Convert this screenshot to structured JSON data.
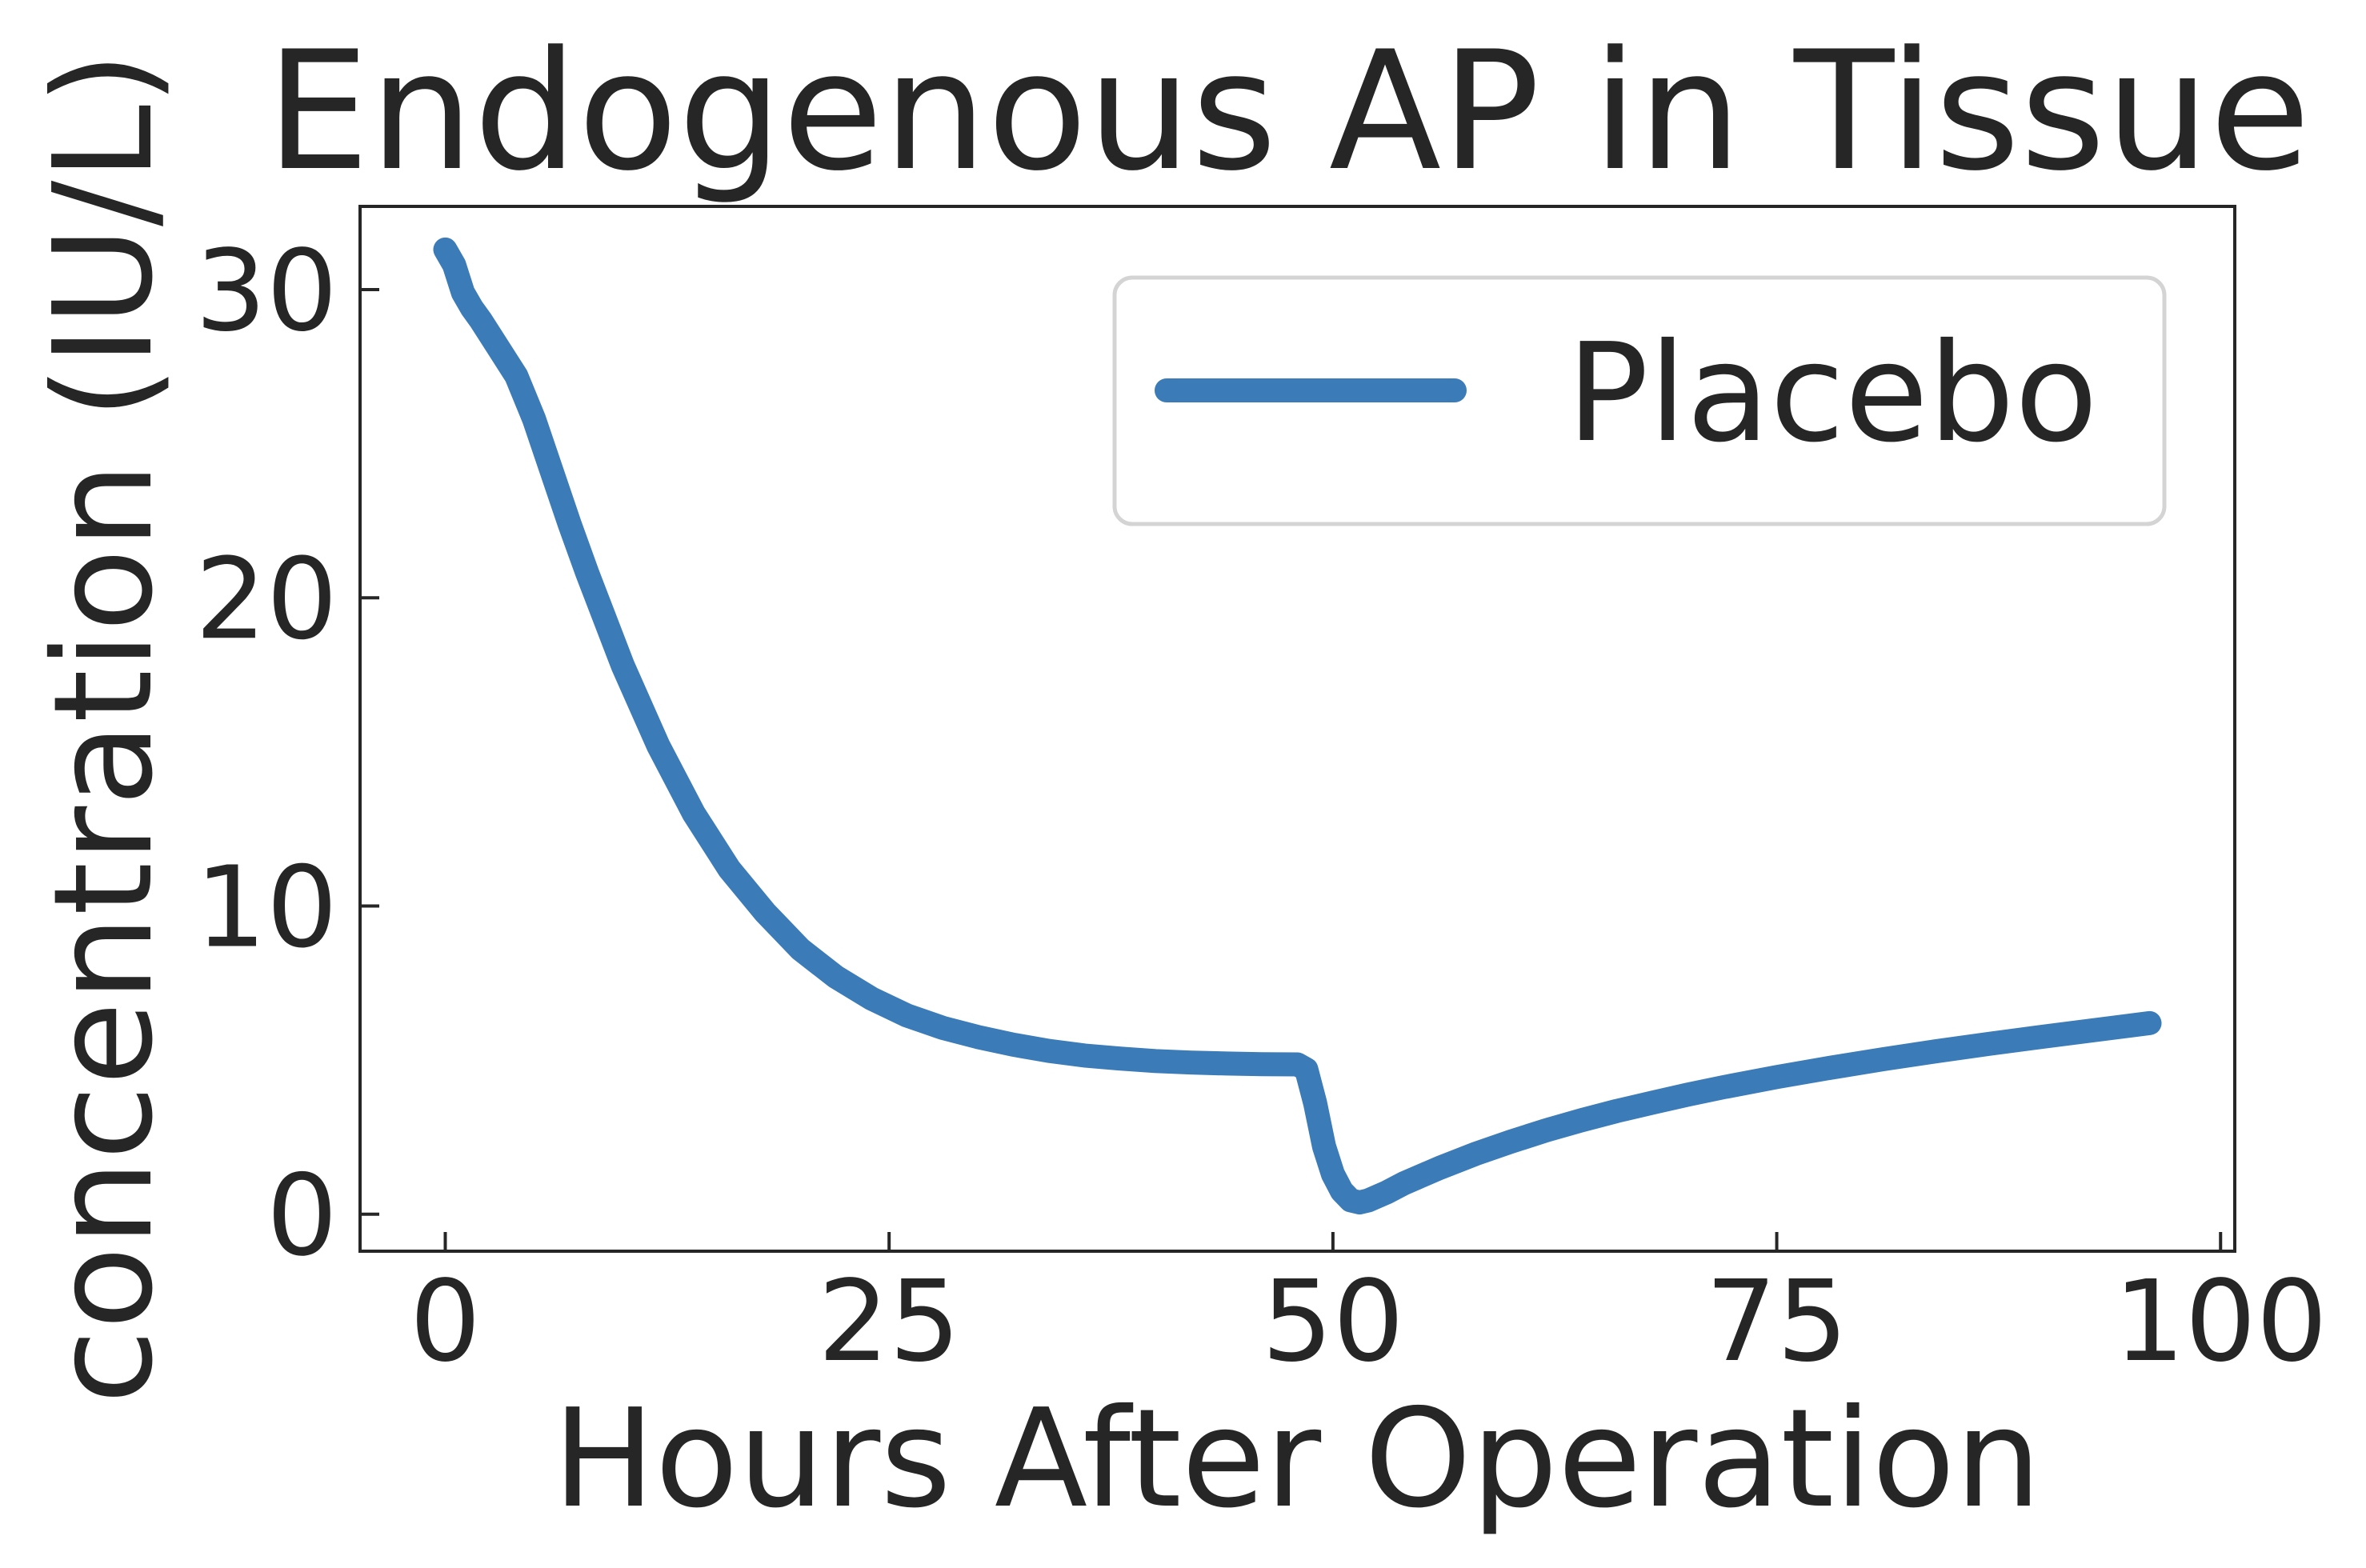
{
  "chart_data": {
    "type": "line",
    "title": "Endogenous AP in Tissue",
    "xlabel": "Hours After Operation",
    "ylabel": "concentration (IU/L)",
    "xlim": [
      -4.8,
      100.8
    ],
    "ylim": [
      -1.2,
      32.7
    ],
    "xticks": [
      0,
      25,
      50,
      75,
      100
    ],
    "xtick_labels": [
      "0",
      "25",
      "50",
      "75",
      "100"
    ],
    "yticks": [
      0,
      10,
      20,
      30
    ],
    "ytick_labels": [
      "0",
      "10",
      "20",
      "30"
    ],
    "grid": false,
    "legend_position": "upper right",
    "colors": {
      "series": "#3a7bb8",
      "axes": "#262626",
      "legend_border": "#d4d4d4"
    },
    "series": [
      {
        "name": "Placebo",
        "x": [
          0,
          0.5,
          1,
          1.5,
          2,
          3,
          4,
          5,
          6,
          7,
          8,
          10,
          12,
          14,
          16,
          18,
          20,
          22,
          24,
          26,
          28,
          30,
          32,
          34,
          36,
          38,
          40,
          42,
          44,
          46,
          48,
          48.5,
          49,
          49.5,
          50,
          50.5,
          51,
          51.5,
          52,
          53,
          54,
          56,
          58,
          60,
          62,
          64,
          66,
          68,
          70,
          72,
          75,
          78,
          81,
          84,
          87,
          90,
          93,
          96
        ],
        "y": [
          31.3,
          30.8,
          29.9,
          29.4,
          29.0,
          28.1,
          27.2,
          25.8,
          24.1,
          22.4,
          20.8,
          17.8,
          15.2,
          13.0,
          11.2,
          9.8,
          8.6,
          7.7,
          7.0,
          6.45,
          6.05,
          5.75,
          5.5,
          5.3,
          5.15,
          5.05,
          4.97,
          4.92,
          4.89,
          4.87,
          4.86,
          4.7,
          3.6,
          2.2,
          1.3,
          0.75,
          0.45,
          0.38,
          0.45,
          0.7,
          1.0,
          1.5,
          1.95,
          2.35,
          2.72,
          3.05,
          3.35,
          3.62,
          3.88,
          4.12,
          4.45,
          4.75,
          5.03,
          5.29,
          5.53,
          5.76,
          5.98,
          6.2
        ]
      }
    ]
  }
}
